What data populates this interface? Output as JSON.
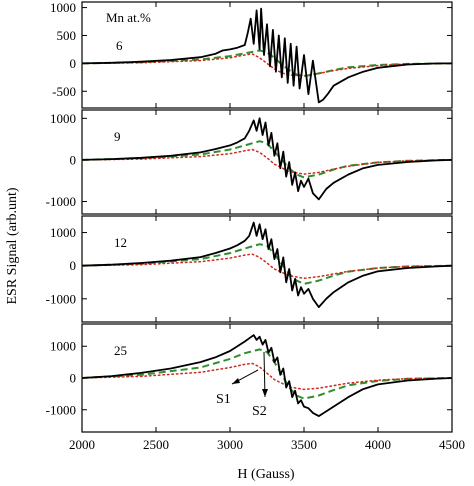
{
  "chart_data": {
    "type": "line",
    "xlabel": "H (Gauss)",
    "ylabel": "ESR Signal (arb.unt)",
    "xlim": [
      2000,
      4500
    ],
    "xticks": [
      2000,
      2500,
      3000,
      3500,
      4000,
      4500
    ],
    "legend_title": "Mn at.%",
    "series_colors": {
      "experimental": "#000000",
      "S1": "#cc2b1d",
      "S2": "#2f8f2f"
    },
    "series_styles": {
      "experimental": "solid",
      "S1": "dotted",
      "S2": "dashed"
    },
    "annotations": [
      {
        "text": "S1",
        "panel": 3
      },
      {
        "text": "S2",
        "panel": 3
      }
    ],
    "panels": [
      {
        "label": "6",
        "ylim": [
          -800,
          1100
        ],
        "yticks": [
          -500,
          0,
          500,
          1000
        ],
        "experimental": {
          "x": [
            2000,
            2200,
            2400,
            2600,
            2800,
            2900,
            2950,
            3000,
            3050,
            3100,
            3120,
            3140,
            3160,
            3180,
            3200,
            3210,
            3230,
            3250,
            3270,
            3290,
            3310,
            3330,
            3350,
            3370,
            3390,
            3410,
            3430,
            3450,
            3470,
            3500,
            3530,
            3560,
            3600,
            3630,
            3660,
            3700,
            3800,
            3900,
            4000,
            4200,
            4400,
            4500
          ],
          "y": [
            0,
            10,
            30,
            60,
            110,
            170,
            230,
            250,
            280,
            330,
            550,
            800,
            350,
            950,
            250,
            980,
            150,
            700,
            -50,
            600,
            -150,
            500,
            -250,
            450,
            -350,
            350,
            -400,
            300,
            -450,
            150,
            -550,
            50,
            -700,
            -650,
            -550,
            -400,
            -250,
            -150,
            -80,
            -20,
            0,
            0
          ]
        },
        "S1": {
          "x": [
            2000,
            2400,
            2800,
            3000,
            3100,
            3150,
            3200,
            3250,
            3300,
            3350,
            3400,
            3500,
            3600,
            3700,
            3800,
            4000,
            4200,
            4500
          ],
          "y": [
            0,
            10,
            50,
            100,
            150,
            170,
            100,
            0,
            -100,
            -170,
            -210,
            -220,
            -180,
            -130,
            -90,
            -40,
            -10,
            0
          ]
        },
        "S2": {
          "x": [
            2000,
            2400,
            2800,
            3000,
            3100,
            3200,
            3250,
            3300,
            3350,
            3400,
            3450,
            3500,
            3600,
            3700,
            3800,
            4000,
            4200,
            4500
          ],
          "y": [
            0,
            20,
            70,
            130,
            180,
            230,
            200,
            100,
            -20,
            -120,
            -200,
            -230,
            -180,
            -120,
            -70,
            -30,
            -10,
            0
          ]
        }
      },
      {
        "label": "9",
        "ylim": [
          -1300,
          1200
        ],
        "yticks": [
          -1000,
          0,
          1000
        ],
        "experimental": {
          "x": [
            2000,
            2200,
            2400,
            2600,
            2800,
            2900,
            3000,
            3050,
            3100,
            3130,
            3160,
            3180,
            3200,
            3220,
            3240,
            3260,
            3280,
            3300,
            3320,
            3340,
            3360,
            3380,
            3400,
            3420,
            3440,
            3460,
            3480,
            3500,
            3530,
            3560,
            3600,
            3650,
            3700,
            3800,
            3900,
            4000,
            4200,
            4400,
            4500
          ],
          "y": [
            0,
            20,
            50,
            100,
            180,
            260,
            350,
            420,
            520,
            700,
            950,
            700,
            1000,
            600,
            900,
            350,
            650,
            100,
            400,
            -200,
            200,
            -400,
            -50,
            -600,
            -300,
            -750,
            -500,
            -650,
            -450,
            -800,
            -950,
            -700,
            -550,
            -350,
            -200,
            -120,
            -50,
            -10,
            0
          ]
        },
        "S1": {
          "x": [
            2000,
            2400,
            2800,
            3000,
            3100,
            3150,
            3200,
            3250,
            3300,
            3400,
            3500,
            3600,
            3700,
            3800,
            4000,
            4200,
            4500
          ],
          "y": [
            0,
            20,
            80,
            150,
            220,
            250,
            180,
            50,
            -100,
            -280,
            -340,
            -300,
            -220,
            -150,
            -60,
            -20,
            0
          ]
        },
        "S2": {
          "x": [
            2000,
            2400,
            2800,
            3000,
            3100,
            3200,
            3250,
            3300,
            3350,
            3400,
            3450,
            3500,
            3600,
            3700,
            3800,
            4000,
            4200,
            4500
          ],
          "y": [
            0,
            40,
            130,
            250,
            350,
            450,
            400,
            200,
            0,
            -200,
            -350,
            -420,
            -350,
            -230,
            -140,
            -60,
            -20,
            0
          ]
        }
      },
      {
        "label": "12",
        "ylim": [
          -1700,
          1500
        ],
        "yticks": [
          -1000,
          0,
          1000
        ],
        "experimental": {
          "x": [
            2000,
            2200,
            2400,
            2600,
            2800,
            2900,
            3000,
            3050,
            3100,
            3130,
            3160,
            3180,
            3200,
            3220,
            3240,
            3260,
            3280,
            3300,
            3320,
            3340,
            3360,
            3380,
            3400,
            3420,
            3440,
            3460,
            3480,
            3500,
            3530,
            3560,
            3600,
            3650,
            3700,
            3800,
            3900,
            4000,
            4200,
            4400,
            4500
          ],
          "y": [
            0,
            30,
            80,
            150,
            260,
            380,
            520,
            620,
            750,
            900,
            1300,
            900,
            1250,
            800,
            1100,
            500,
            800,
            200,
            500,
            -200,
            250,
            -500,
            -100,
            -750,
            -400,
            -900,
            -650,
            -850,
            -700,
            -1000,
            -1250,
            -1000,
            -800,
            -500,
            -300,
            -170,
            -70,
            -20,
            0
          ]
        },
        "S1": {
          "x": [
            2000,
            2400,
            2800,
            3000,
            3100,
            3150,
            3200,
            3250,
            3300,
            3400,
            3500,
            3600,
            3700,
            3800,
            4000,
            4200,
            4500
          ],
          "y": [
            0,
            30,
            120,
            230,
            320,
            350,
            250,
            80,
            -100,
            -300,
            -380,
            -330,
            -250,
            -170,
            -70,
            -20,
            0
          ]
        },
        "S2": {
          "x": [
            2000,
            2400,
            2800,
            3000,
            3100,
            3200,
            3250,
            3300,
            3350,
            3400,
            3450,
            3500,
            3600,
            3700,
            3800,
            4000,
            4200,
            4500
          ],
          "y": [
            0,
            60,
            200,
            380,
            520,
            650,
            600,
            350,
            50,
            -250,
            -450,
            -550,
            -450,
            -300,
            -180,
            -70,
            -20,
            0
          ]
        }
      },
      {
        "label": "25",
        "ylim": [
          -1700,
          1700
        ],
        "yticks": [
          -1000,
          0,
          1000
        ],
        "experimental": {
          "x": [
            2000,
            2200,
            2400,
            2600,
            2800,
            2900,
            3000,
            3050,
            3100,
            3130,
            3160,
            3180,
            3200,
            3220,
            3240,
            3260,
            3280,
            3300,
            3320,
            3340,
            3360,
            3380,
            3400,
            3420,
            3440,
            3460,
            3480,
            3500,
            3530,
            3560,
            3600,
            3650,
            3700,
            3800,
            3900,
            4000,
            4200,
            4400,
            4500
          ],
          "y": [
            0,
            60,
            160,
            300,
            500,
            650,
            850,
            1000,
            1150,
            1250,
            1350,
            1200,
            1300,
            1050,
            1200,
            800,
            950,
            500,
            650,
            100,
            300,
            -300,
            -100,
            -600,
            -400,
            -800,
            -700,
            -900,
            -950,
            -1100,
            -1200,
            -1050,
            -900,
            -600,
            -350,
            -200,
            -80,
            -20,
            0
          ]
        },
        "S1": {
          "x": [
            2000,
            2400,
            2800,
            3000,
            3100,
            3150,
            3200,
            3250,
            3300,
            3400,
            3500,
            3600,
            3700,
            3800,
            4000,
            4200,
            4500
          ],
          "y": [
            0,
            50,
            180,
            330,
            430,
            460,
            350,
            150,
            -50,
            -280,
            -360,
            -320,
            -240,
            -160,
            -70,
            -20,
            0
          ]
        },
        "S2": {
          "x": [
            2000,
            2400,
            2800,
            3000,
            3100,
            3200,
            3250,
            3300,
            3350,
            3400,
            3450,
            3500,
            3600,
            3700,
            3800,
            4000,
            4200,
            4500
          ],
          "y": [
            0,
            100,
            330,
            600,
            780,
            900,
            820,
            500,
            100,
            -300,
            -550,
            -650,
            -550,
            -380,
            -230,
            -90,
            -25,
            0
          ]
        }
      }
    ]
  }
}
